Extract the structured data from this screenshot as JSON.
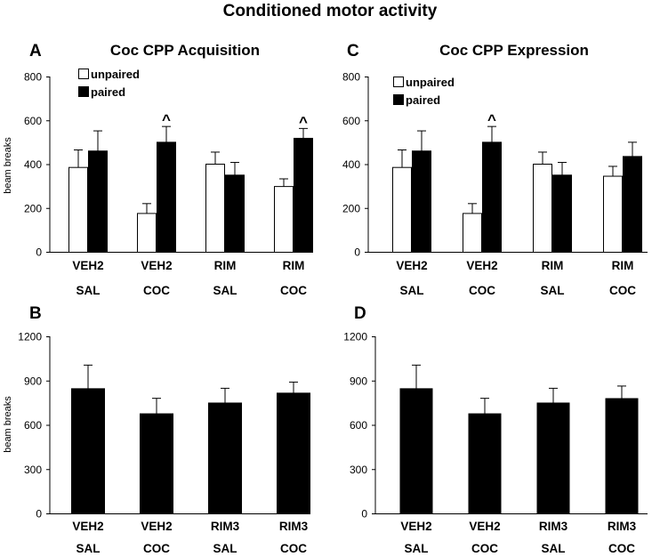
{
  "figure": {
    "title": "Conditioned motor activity"
  },
  "chart_data": [
    {
      "panel": "A",
      "type": "bar",
      "title": "Coc CPP Acquisition",
      "ylabel": "beam breaks",
      "xlabel": "",
      "ylim": [
        0,
        800
      ],
      "yticks": [
        0,
        200,
        400,
        600,
        800
      ],
      "categories": [
        [
          "VEH2",
          "SAL"
        ],
        [
          "VEH2",
          "COC"
        ],
        [
          "RIM",
          "SAL"
        ],
        [
          "RIM",
          "COC"
        ]
      ],
      "series": [
        {
          "name": "unpaired",
          "color": "#ffffff",
          "values": [
            385,
            175,
            400,
            298
          ],
          "errors": [
            80,
            45,
            55,
            35
          ]
        },
        {
          "name": "paired",
          "color": "#000000",
          "values": [
            460,
            500,
            350,
            518
          ],
          "errors": [
            92,
            72,
            58,
            45
          ]
        }
      ],
      "annotations": [
        {
          "text": "^",
          "category": 1,
          "series": 1
        },
        {
          "text": "^",
          "category": 3,
          "series": 1
        }
      ],
      "legend": "top-left",
      "grid": false
    },
    {
      "panel": "C",
      "type": "bar",
      "title": "Coc CPP Expression",
      "ylabel": "",
      "xlabel": "",
      "ylim": [
        0,
        800
      ],
      "yticks": [
        0,
        200,
        400,
        600,
        800
      ],
      "categories": [
        [
          "VEH2",
          "SAL"
        ],
        [
          "VEH2",
          "COC"
        ],
        [
          "RIM",
          "SAL"
        ],
        [
          "RIM",
          "COC"
        ]
      ],
      "series": [
        {
          "name": "unpaired",
          "color": "#ffffff",
          "values": [
            385,
            175,
            400,
            345
          ],
          "errors": [
            80,
            45,
            55,
            45
          ]
        },
        {
          "name": "paired",
          "color": "#000000",
          "values": [
            460,
            500,
            350,
            435
          ],
          "errors": [
            92,
            72,
            58,
            65
          ]
        }
      ],
      "annotations": [
        {
          "text": "^",
          "category": 1,
          "series": 1
        }
      ],
      "legend": "top-left",
      "grid": false
    },
    {
      "panel": "B",
      "type": "bar",
      "title": "",
      "ylabel": "beam breaks",
      "xlabel": "",
      "ylim": [
        0,
        1200
      ],
      "yticks": [
        0,
        300,
        600,
        900,
        1200
      ],
      "categories": [
        [
          "VEH2",
          "SAL"
        ],
        [
          "VEH2",
          "COC"
        ],
        [
          "RIM3",
          "SAL"
        ],
        [
          "RIM3",
          "COC"
        ]
      ],
      "series": [
        {
          "color": "#000000",
          "values": [
            845,
            675,
            748,
            815
          ],
          "errors": [
            160,
            105,
            100,
            75
          ]
        }
      ],
      "annotations": [],
      "grid": false
    },
    {
      "panel": "D",
      "type": "bar",
      "title": "",
      "ylabel": "",
      "xlabel": "",
      "ylim": [
        0,
        1200
      ],
      "yticks": [
        0,
        300,
        600,
        900,
        1200
      ],
      "categories": [
        [
          "VEH2",
          "SAL"
        ],
        [
          "VEH2",
          "COC"
        ],
        [
          "RIM3",
          "SAL"
        ],
        [
          "RIM3",
          "COC"
        ]
      ],
      "series": [
        {
          "color": "#000000",
          "values": [
            845,
            675,
            748,
            778
          ],
          "errors": [
            160,
            105,
            100,
            85
          ]
        }
      ],
      "annotations": [],
      "grid": false
    }
  ]
}
